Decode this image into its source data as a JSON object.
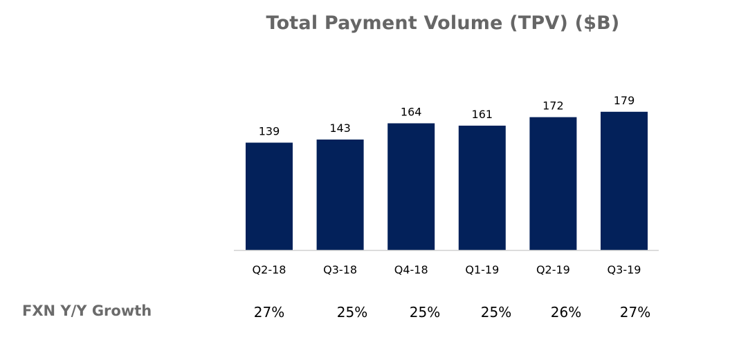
{
  "colors": {
    "bar": "#03215a",
    "axis": "#d0d0d0",
    "title": "#666666"
  },
  "chart_data": {
    "type": "bar",
    "title": "Total Payment Volume (TPV) ($B)",
    "categories": [
      "Q2-18",
      "Q3-18",
      "Q4-18",
      "Q1-19",
      "Q2-19",
      "Q3-19"
    ],
    "values": [
      139,
      143,
      164,
      161,
      172,
      179
    ],
    "data_labels": [
      "139",
      "143",
      "164",
      "161",
      "172",
      "179"
    ],
    "xlabel": "",
    "ylabel": "",
    "ylim": [
      0,
      200
    ],
    "grid": false,
    "legend": "none"
  },
  "growth_row": {
    "label": "FXN Y/Y Growth",
    "values": [
      "27%",
      "25%",
      "25%",
      "25%",
      "26%",
      "27%"
    ]
  }
}
